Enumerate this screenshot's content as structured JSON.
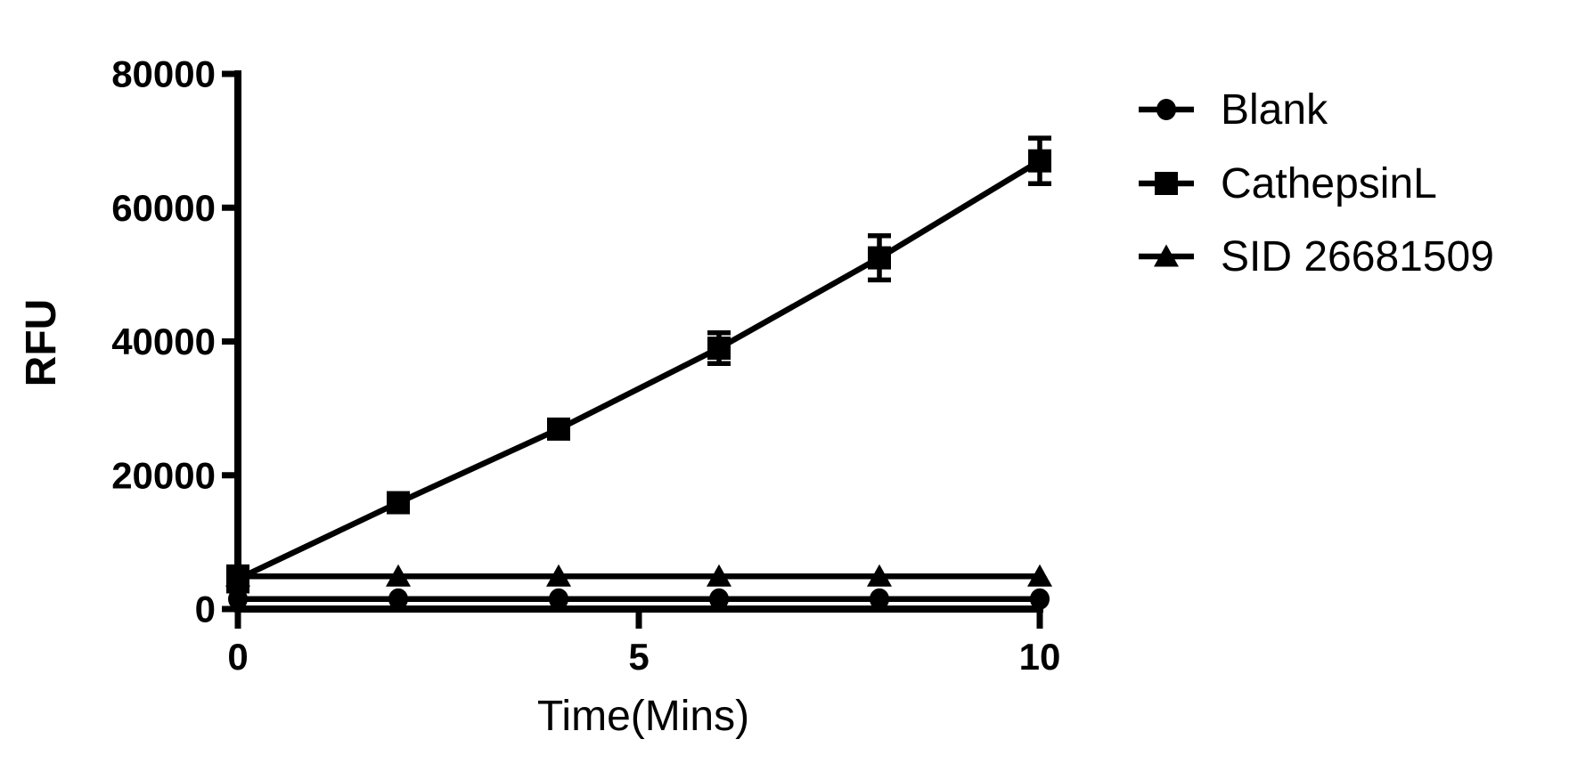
{
  "figure": {
    "background_color": "#ffffff",
    "ink_color": "#000000"
  },
  "chart_data": {
    "type": "line",
    "title": "",
    "xlabel": "Time(Mins)",
    "ylabel": "RFU",
    "xlim": [
      0,
      10
    ],
    "ylim": [
      0,
      80000
    ],
    "grid": false,
    "legend_position": "right",
    "x": [
      0,
      2,
      4,
      6,
      8,
      10
    ],
    "xticks": [
      {
        "value": 0,
        "label": "0"
      },
      {
        "value": 5,
        "label": "5"
      },
      {
        "value": 10,
        "label": "10"
      }
    ],
    "yticks": [
      {
        "value": 0,
        "label": "0"
      },
      {
        "value": 20000,
        "label": "20000"
      },
      {
        "value": 40000,
        "label": "40000"
      },
      {
        "value": 60000,
        "label": "60000"
      },
      {
        "value": 80000,
        "label": "80000"
      }
    ],
    "series": [
      {
        "name": "Blank",
        "marker": "circle",
        "values": [
          1500,
          1500,
          1500,
          1500,
          1500,
          1500
        ],
        "errors": [
          0,
          0,
          0,
          0,
          0,
          0
        ]
      },
      {
        "name": "CathepsinL",
        "marker": "square",
        "values": [
          4500,
          15900,
          26900,
          39000,
          52500,
          67000
        ],
        "errors": [
          1800,
          1000,
          1000,
          2300,
          3300,
          3400
        ]
      },
      {
        "name": "SID 26681509",
        "marker": "triangle",
        "values": [
          4900,
          4900,
          4900,
          4900,
          4900,
          4900
        ],
        "errors": [
          0,
          0,
          0,
          0,
          0,
          0
        ]
      }
    ],
    "legend": {
      "entries": [
        "Blank",
        "CathepsinL",
        "SID 26681509"
      ]
    }
  }
}
